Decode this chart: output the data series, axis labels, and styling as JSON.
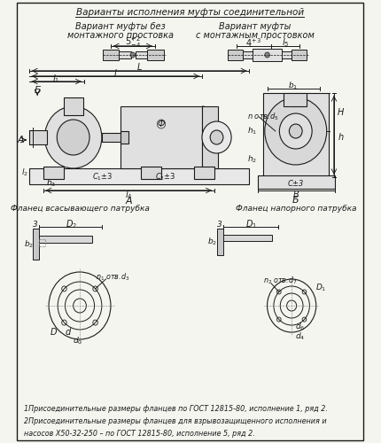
{
  "title_line1": "Варианты исполнения муфты соединительной",
  "title_line2_left": "Вариант муфты без",
  "title_line2_right": "Вариант муфты",
  "title_line3_left": "монтажного простовка",
  "title_line3_right": "с монтажным простовком",
  "note_line1": "1Присоединительные размеры фланцев по ГОСТ 12815-80, исполнение 1, ряд 2.",
  "note_line2": "2Присоединительные размеры фланцев для взрывозащищенного исполнения и",
  "note_line3": "насосов Х50-32-250 – по ГОСТ 12815-80, исполнение 5, ряд 2.",
  "label_flanec_vsas": "Фланец всасывающего патрубка",
  "label_flanec_nap": "Фланец напорного патрубка",
  "bg_color": "#f5f5f0",
  "line_color": "#1a1a1a",
  "text_color": "#1a1a1a",
  "font_size_title": 7.5,
  "font_size_label": 6.5,
  "font_size_note": 5.8
}
